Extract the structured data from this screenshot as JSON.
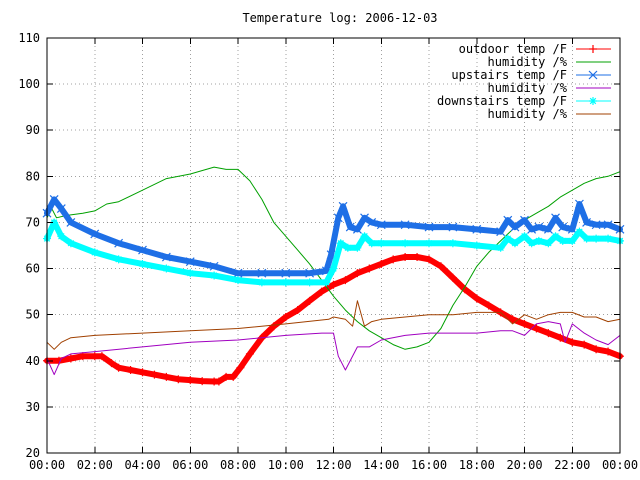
{
  "chart_data": {
    "type": "line",
    "title": "Temperature log: 2006-12-03",
    "xlabel": "",
    "ylabel": "",
    "x_unit": "hours",
    "xlim": [
      0,
      24
    ],
    "ylim": [
      20,
      110
    ],
    "x_ticks": [
      0,
      2,
      4,
      6,
      8,
      10,
      12,
      14,
      16,
      18,
      20,
      22,
      24
    ],
    "x_tick_labels": [
      "00:00",
      "02:00",
      "04:00",
      "06:00",
      "08:00",
      "10:00",
      "12:00",
      "14:00",
      "16:00",
      "18:00",
      "20:00",
      "22:00",
      "00:00"
    ],
    "y_ticks": [
      20,
      30,
      40,
      50,
      60,
      70,
      80,
      90,
      100,
      110
    ],
    "grid": true,
    "legend_position": "top-right",
    "series": [
      {
        "name": "outdoor temp /F",
        "color": "#ff0000",
        "marker": "plus",
        "x": [
          0,
          0.5,
          1,
          1.5,
          2,
          2.3,
          2.7,
          3,
          3.5,
          4,
          4.5,
          5,
          5.5,
          6,
          6.5,
          7,
          7.2,
          7.5,
          7.8,
          8.1,
          8.5,
          9,
          9.5,
          10,
          10.5,
          11,
          11.5,
          12,
          12.5,
          13,
          13.5,
          14,
          14.5,
          15,
          15.5,
          16,
          16.5,
          17,
          17.5,
          18,
          18.5,
          19,
          19.5,
          20,
          20.5,
          21,
          21.5,
          22,
          22.5,
          23,
          23.5,
          24
        ],
        "values": [
          40,
          40,
          40.5,
          41,
          41,
          41,
          39.5,
          38.5,
          38,
          37.5,
          37,
          36.5,
          36,
          35.8,
          35.6,
          35.5,
          35.5,
          36.5,
          36.5,
          38.5,
          41.5,
          45,
          47.5,
          49.5,
          51,
          53,
          55,
          56.5,
          57.5,
          59,
          60,
          61,
          62,
          62.5,
          62.5,
          62,
          60.5,
          58,
          55.5,
          53.5,
          52,
          50.5,
          49,
          48,
          47,
          46,
          45,
          44,
          43.5,
          42.5,
          42,
          41
        ]
      },
      {
        "name": "humidity /%",
        "color": "#00a000",
        "marker": "none",
        "x": [
          0,
          0.2,
          0.4,
          0.8,
          1.5,
          2,
          2.5,
          3,
          4,
          5,
          6,
          7,
          7.5,
          8,
          8.5,
          9,
          9.5,
          10,
          10.5,
          11,
          11.5,
          12,
          12.5,
          13,
          13.5,
          14,
          14.5,
          15,
          15.5,
          16,
          16.5,
          17,
          17.5,
          18,
          18.5,
          19,
          19.5,
          20,
          20.5,
          21,
          21.5,
          22,
          22.5,
          23,
          23.5,
          24
        ],
        "values": [
          71,
          73,
          71,
          71.5,
          72,
          72.5,
          74,
          74.5,
          77,
          79.5,
          80.5,
          82,
          81.5,
          81.5,
          79,
          75,
          70,
          67,
          64,
          61,
          57.5,
          54,
          51,
          48.5,
          46.5,
          45,
          43.5,
          42.5,
          43,
          44,
          47,
          52,
          56,
          60.5,
          63.5,
          66,
          68.5,
          70.5,
          72,
          73.5,
          75.5,
          77,
          78.5,
          79.5,
          80,
          81
        ]
      },
      {
        "name": "upstairs temp /F",
        "color": "#1e6fe6",
        "marker": "x",
        "x": [
          0,
          0.3,
          0.6,
          1,
          2,
          3,
          4,
          5,
          6,
          7,
          8,
          9,
          10,
          11,
          11.7,
          11.9,
          12.2,
          12.4,
          12.7,
          13,
          13.3,
          13.6,
          14,
          15,
          16,
          17,
          18,
          19,
          19.3,
          19.6,
          20,
          20.3,
          20.6,
          21,
          21.3,
          21.6,
          22,
          22.3,
          22.6,
          23,
          23.5,
          24
        ],
        "values": [
          72,
          75,
          73,
          70,
          67.5,
          65.5,
          64,
          62.5,
          61.5,
          60.5,
          59,
          59,
          59,
          59,
          59.5,
          63,
          71,
          73.5,
          69,
          68.5,
          71,
          70,
          69.5,
          69.5,
          69,
          69,
          68.5,
          68,
          70.5,
          69,
          70.5,
          68.5,
          69,
          68.5,
          71,
          69,
          68.5,
          74,
          70,
          69.5,
          69.5,
          68.5
        ]
      },
      {
        "name": "humidity /%",
        "color": "#a000c0",
        "marker": "none",
        "x": [
          0,
          0.3,
          0.6,
          1,
          2,
          4,
          6,
          8,
          10,
          11.5,
          12,
          12.2,
          12.5,
          13,
          13.5,
          14,
          15,
          16,
          17,
          18,
          19,
          19.5,
          20,
          20.5,
          21,
          21.5,
          21.7,
          22,
          22.5,
          23,
          23.5,
          24
        ],
        "values": [
          40.5,
          37,
          40.5,
          41.5,
          42,
          43,
          44,
          44.5,
          45.5,
          46,
          46,
          41,
          38,
          43,
          43,
          44.5,
          45.5,
          46,
          46,
          46,
          46.5,
          46.5,
          45.5,
          48,
          48.5,
          48,
          44,
          48,
          46,
          44.5,
          43.5,
          45.5
        ]
      },
      {
        "name": "downstairs temp /F",
        "color": "#00ffff",
        "marker": "star",
        "x": [
          0,
          0.3,
          0.6,
          1,
          2,
          3,
          4,
          5,
          6,
          7,
          8,
          9,
          10,
          11,
          11.7,
          12,
          12.3,
          12.6,
          13,
          13.3,
          13.6,
          14,
          15,
          16,
          17,
          18,
          19,
          19.3,
          19.6,
          20,
          20.3,
          20.6,
          21,
          21.3,
          21.6,
          22,
          22.3,
          22.6,
          23,
          23.5,
          24
        ],
        "values": [
          66.5,
          70,
          67,
          65.5,
          63.5,
          62,
          61,
          60,
          59,
          58.5,
          57.5,
          57,
          57,
          57,
          57,
          60,
          65.5,
          64.5,
          64.5,
          67,
          65.5,
          65.5,
          65.5,
          65.5,
          65.5,
          65,
          64.5,
          66.5,
          65.5,
          67,
          65.5,
          66,
          65.5,
          67,
          66,
          66,
          68,
          66.5,
          66.5,
          66.5,
          66
        ]
      },
      {
        "name": "humidity /%",
        "color": "#a04000",
        "marker": "none",
        "x": [
          0,
          0.3,
          0.6,
          1,
          2,
          4,
          6,
          8,
          10,
          11.8,
          12,
          12.5,
          12.8,
          13,
          13.3,
          13.6,
          14,
          15,
          16,
          17,
          18,
          19,
          19.5,
          20,
          20.5,
          21,
          21.5,
          22,
          22.5,
          23,
          23.5,
          24
        ],
        "values": [
          44,
          42.5,
          44,
          45,
          45.5,
          46,
          46.5,
          47,
          48,
          49,
          49.5,
          49,
          47.5,
          53,
          47.5,
          48.5,
          49,
          49.5,
          50,
          50,
          50.5,
          50.5,
          48,
          50,
          49,
          50,
          50.5,
          50.5,
          49.5,
          49.5,
          48.5,
          49
        ]
      }
    ]
  }
}
